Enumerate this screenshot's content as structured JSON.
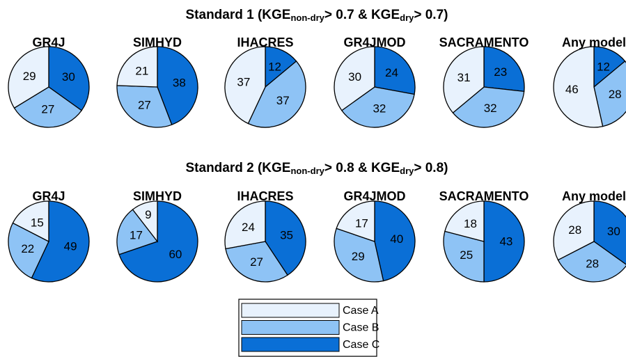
{
  "headings": [
    [
      "Standard 1 (KGE",
      "non-dry",
      "> 0.7 & KGE",
      "dry",
      "> 0.7)"
    ],
    [
      "Standard 2 (KGE",
      "non-dry",
      "> 0.8 & KGE",
      "dry",
      "> 0.8)"
    ]
  ],
  "legend": {
    "labels": [
      "Case A",
      "Case B",
      "Case C"
    ],
    "colors": [
      "#e8f2fd",
      "#8ec3f5",
      "#0a6fd6"
    ]
  },
  "chart_data": [
    {
      "type": "pie",
      "title": "GR4J",
      "values": [
        29,
        27,
        30
      ]
    },
    {
      "type": "pie",
      "title": "SIMHYD",
      "values": [
        21,
        27,
        38
      ]
    },
    {
      "type": "pie",
      "title": "IHACRES",
      "values": [
        37,
        37,
        12
      ]
    },
    {
      "type": "pie",
      "title": "GR4JMOD",
      "values": [
        30,
        32,
        24
      ]
    },
    {
      "type": "pie",
      "title": "SACRAMENTO",
      "values": [
        31,
        32,
        23
      ]
    },
    {
      "type": "pie",
      "title": "Any model",
      "values": [
        46,
        28,
        12
      ]
    },
    {
      "type": "pie",
      "title": "GR4J",
      "values": [
        15,
        22,
        49
      ]
    },
    {
      "type": "pie",
      "title": "SIMHYD",
      "values": [
        9,
        17,
        60
      ]
    },
    {
      "type": "pie",
      "title": "IHACRES",
      "values": [
        24,
        27,
        35
      ]
    },
    {
      "type": "pie",
      "title": "GR4JMOD",
      "values": [
        17,
        29,
        40
      ]
    },
    {
      "type": "pie",
      "title": "SACRAMENTO",
      "values": [
        18,
        25,
        43
      ]
    },
    {
      "type": "pie",
      "title": "Any model",
      "values": [
        28,
        28,
        30
      ]
    }
  ]
}
